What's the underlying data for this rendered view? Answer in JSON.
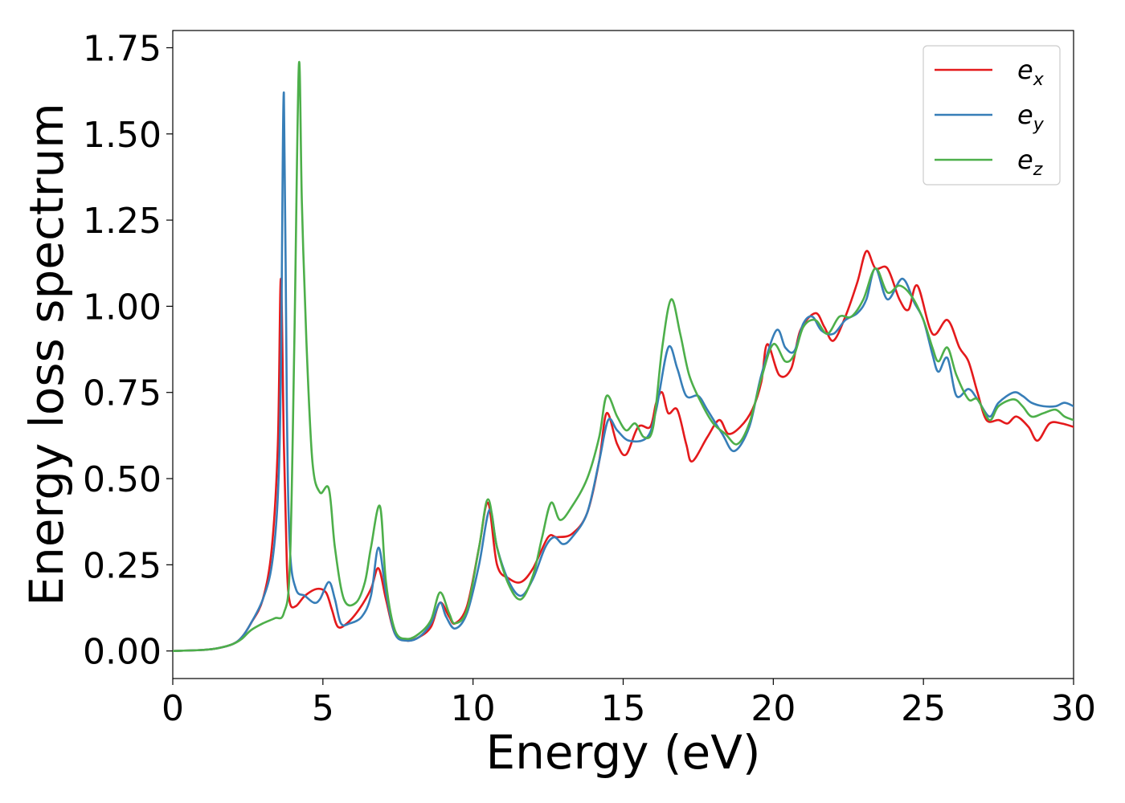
{
  "chart_data": {
    "type": "line",
    "xlabel": "Energy (eV)",
    "ylabel": "Energy loss spectrum",
    "xlim": [
      0,
      30
    ],
    "ylim": [
      -0.08,
      1.8
    ],
    "xticks": [
      0,
      5,
      10,
      15,
      20,
      25,
      30
    ],
    "xtick_labels": [
      "0",
      "5",
      "10",
      "15",
      "20",
      "25",
      "30"
    ],
    "yticks": [
      0,
      0.25,
      0.5,
      0.75,
      1.0,
      1.25,
      1.5,
      1.75
    ],
    "ytick_labels": [
      "0.00",
      "0.25",
      "0.50",
      "0.75",
      "1.00",
      "1.25",
      "1.50",
      "1.75"
    ],
    "grid": false,
    "legend_position": "top-right",
    "series": [
      {
        "name": "e_x",
        "legend_main": "e",
        "legend_sub": "x",
        "color": "#e41a1c",
        "points": [
          [
            0,
            0
          ],
          [
            1,
            0.003
          ],
          [
            1.5,
            0.008
          ],
          [
            2,
            0.02
          ],
          [
            2.3,
            0.04
          ],
          [
            2.6,
            0.08
          ],
          [
            3,
            0.15
          ],
          [
            3.3,
            0.3
          ],
          [
            3.5,
            0.6
          ],
          [
            3.6,
            1.08
          ],
          [
            3.7,
            0.6
          ],
          [
            3.8,
            0.25
          ],
          [
            3.9,
            0.14
          ],
          [
            4.1,
            0.13
          ],
          [
            4.4,
            0.16
          ],
          [
            4.8,
            0.18
          ],
          [
            5.1,
            0.17
          ],
          [
            5.3,
            0.12
          ],
          [
            5.5,
            0.07
          ],
          [
            5.8,
            0.08
          ],
          [
            6.2,
            0.12
          ],
          [
            6.6,
            0.18
          ],
          [
            6.85,
            0.24
          ],
          [
            7.1,
            0.15
          ],
          [
            7.4,
            0.05
          ],
          [
            7.8,
            0.03
          ],
          [
            8.2,
            0.04
          ],
          [
            8.6,
            0.07
          ],
          [
            8.9,
            0.14
          ],
          [
            9.2,
            0.1
          ],
          [
            9.4,
            0.08
          ],
          [
            9.8,
            0.13
          ],
          [
            10.2,
            0.3
          ],
          [
            10.5,
            0.43
          ],
          [
            10.8,
            0.25
          ],
          [
            11.2,
            0.21
          ],
          [
            11.6,
            0.2
          ],
          [
            12,
            0.24
          ],
          [
            12.5,
            0.33
          ],
          [
            12.8,
            0.33
          ],
          [
            13.3,
            0.34
          ],
          [
            13.8,
            0.4
          ],
          [
            14.2,
            0.55
          ],
          [
            14.45,
            0.69
          ],
          [
            14.8,
            0.6
          ],
          [
            15.1,
            0.57
          ],
          [
            15.5,
            0.65
          ],
          [
            15.9,
            0.65
          ],
          [
            16.1,
            0.72
          ],
          [
            16.3,
            0.75
          ],
          [
            16.5,
            0.69
          ],
          [
            16.8,
            0.7
          ],
          [
            17.1,
            0.6
          ],
          [
            17.3,
            0.55
          ],
          [
            17.8,
            0.62
          ],
          [
            18.2,
            0.67
          ],
          [
            18.5,
            0.63
          ],
          [
            18.9,
            0.65
          ],
          [
            19.3,
            0.7
          ],
          [
            19.6,
            0.78
          ],
          [
            19.8,
            0.89
          ],
          [
            20.2,
            0.8
          ],
          [
            20.6,
            0.82
          ],
          [
            20.9,
            0.93
          ],
          [
            21.4,
            0.98
          ],
          [
            21.7,
            0.94
          ],
          [
            22.0,
            0.9
          ],
          [
            22.4,
            0.97
          ],
          [
            22.8,
            1.07
          ],
          [
            23.1,
            1.16
          ],
          [
            23.4,
            1.11
          ],
          [
            23.8,
            1.11
          ],
          [
            24.2,
            1.02
          ],
          [
            24.5,
            0.99
          ],
          [
            24.8,
            1.06
          ],
          [
            25.3,
            0.92
          ],
          [
            25.8,
            0.96
          ],
          [
            26.2,
            0.88
          ],
          [
            26.5,
            0.84
          ],
          [
            26.8,
            0.75
          ],
          [
            27.1,
            0.67
          ],
          [
            27.5,
            0.67
          ],
          [
            27.8,
            0.66
          ],
          [
            28.1,
            0.68
          ],
          [
            28.5,
            0.65
          ],
          [
            28.8,
            0.61
          ],
          [
            29.2,
            0.66
          ],
          [
            29.6,
            0.66
          ],
          [
            30,
            0.65
          ]
        ]
      },
      {
        "name": "e_y",
        "legend_main": "e",
        "legend_sub": "y",
        "color": "#377eb8",
        "points": [
          [
            0,
            0
          ],
          [
            1,
            0.003
          ],
          [
            1.5,
            0.008
          ],
          [
            2,
            0.02
          ],
          [
            2.3,
            0.04
          ],
          [
            2.6,
            0.08
          ],
          [
            3,
            0.15
          ],
          [
            3.3,
            0.25
          ],
          [
            3.5,
            0.45
          ],
          [
            3.6,
            0.8
          ],
          [
            3.7,
            1.62
          ],
          [
            3.8,
            0.7
          ],
          [
            3.9,
            0.3
          ],
          [
            4.1,
            0.18
          ],
          [
            4.4,
            0.16
          ],
          [
            4.7,
            0.14
          ],
          [
            4.9,
            0.15
          ],
          [
            5.2,
            0.2
          ],
          [
            5.4,
            0.15
          ],
          [
            5.6,
            0.08
          ],
          [
            5.9,
            0.08
          ],
          [
            6.3,
            0.1
          ],
          [
            6.6,
            0.16
          ],
          [
            6.85,
            0.3
          ],
          [
            7.1,
            0.17
          ],
          [
            7.4,
            0.05
          ],
          [
            7.8,
            0.03
          ],
          [
            8.2,
            0.04
          ],
          [
            8.6,
            0.08
          ],
          [
            8.9,
            0.14
          ],
          [
            9.1,
            0.1
          ],
          [
            9.4,
            0.065
          ],
          [
            9.8,
            0.11
          ],
          [
            10.2,
            0.25
          ],
          [
            10.55,
            0.41
          ],
          [
            10.8,
            0.3
          ],
          [
            11.2,
            0.2
          ],
          [
            11.6,
            0.16
          ],
          [
            12,
            0.21
          ],
          [
            12.4,
            0.3
          ],
          [
            12.7,
            0.33
          ],
          [
            13,
            0.31
          ],
          [
            13.3,
            0.33
          ],
          [
            13.8,
            0.4
          ],
          [
            14.2,
            0.55
          ],
          [
            14.5,
            0.67
          ],
          [
            14.8,
            0.64
          ],
          [
            15.2,
            0.61
          ],
          [
            15.8,
            0.62
          ],
          [
            16.1,
            0.7
          ],
          [
            16.5,
            0.88
          ],
          [
            16.8,
            0.82
          ],
          [
            17.1,
            0.74
          ],
          [
            17.5,
            0.74
          ],
          [
            17.8,
            0.7
          ],
          [
            18.3,
            0.63
          ],
          [
            18.7,
            0.58
          ],
          [
            19.2,
            0.65
          ],
          [
            19.6,
            0.8
          ],
          [
            20.1,
            0.93
          ],
          [
            20.4,
            0.88
          ],
          [
            20.7,
            0.87
          ],
          [
            21,
            0.95
          ],
          [
            21.3,
            0.97
          ],
          [
            21.6,
            0.93
          ],
          [
            22,
            0.92
          ],
          [
            22.4,
            0.96
          ],
          [
            22.8,
            0.98
          ],
          [
            23.1,
            1.02
          ],
          [
            23.4,
            1.11
          ],
          [
            23.8,
            1.02
          ],
          [
            24.3,
            1.08
          ],
          [
            24.7,
            1.01
          ],
          [
            25,
            0.96
          ],
          [
            25.3,
            0.86
          ],
          [
            25.5,
            0.81
          ],
          [
            25.8,
            0.85
          ],
          [
            26.1,
            0.74
          ],
          [
            26.5,
            0.76
          ],
          [
            26.8,
            0.73
          ],
          [
            27.2,
            0.68
          ],
          [
            27.5,
            0.72
          ],
          [
            28,
            0.75
          ],
          [
            28.3,
            0.74
          ],
          [
            28.6,
            0.72
          ],
          [
            29,
            0.71
          ],
          [
            29.4,
            0.71
          ],
          [
            29.7,
            0.72
          ],
          [
            30,
            0.71
          ]
        ]
      },
      {
        "name": "e_z",
        "legend_main": "e",
        "legend_sub": "z",
        "color": "#4daf4a",
        "points": [
          [
            0,
            0
          ],
          [
            1,
            0.003
          ],
          [
            1.5,
            0.008
          ],
          [
            2,
            0.02
          ],
          [
            2.3,
            0.035
          ],
          [
            2.6,
            0.06
          ],
          [
            3,
            0.08
          ],
          [
            3.4,
            0.095
          ],
          [
            3.7,
            0.11
          ],
          [
            3.9,
            0.25
          ],
          [
            4.05,
            0.9
          ],
          [
            4.2,
            1.7
          ],
          [
            4.3,
            1.3
          ],
          [
            4.45,
            0.9
          ],
          [
            4.65,
            0.55
          ],
          [
            4.9,
            0.46
          ],
          [
            5.2,
            0.47
          ],
          [
            5.4,
            0.3
          ],
          [
            5.7,
            0.15
          ],
          [
            6.1,
            0.14
          ],
          [
            6.4,
            0.2
          ],
          [
            6.6,
            0.3
          ],
          [
            6.9,
            0.42
          ],
          [
            7.1,
            0.2
          ],
          [
            7.4,
            0.06
          ],
          [
            7.8,
            0.035
          ],
          [
            8.2,
            0.05
          ],
          [
            8.6,
            0.09
          ],
          [
            8.9,
            0.17
          ],
          [
            9.2,
            0.11
          ],
          [
            9.4,
            0.08
          ],
          [
            9.8,
            0.12
          ],
          [
            10.2,
            0.3
          ],
          [
            10.5,
            0.44
          ],
          [
            10.8,
            0.3
          ],
          [
            11.2,
            0.19
          ],
          [
            11.6,
            0.15
          ],
          [
            12,
            0.22
          ],
          [
            12.3,
            0.33
          ],
          [
            12.6,
            0.43
          ],
          [
            12.9,
            0.38
          ],
          [
            13.3,
            0.42
          ],
          [
            13.8,
            0.5
          ],
          [
            14.2,
            0.62
          ],
          [
            14.45,
            0.74
          ],
          [
            14.8,
            0.68
          ],
          [
            15.1,
            0.64
          ],
          [
            15.4,
            0.66
          ],
          [
            15.7,
            0.62
          ],
          [
            16,
            0.65
          ],
          [
            16.3,
            0.88
          ],
          [
            16.6,
            1.02
          ],
          [
            16.9,
            0.92
          ],
          [
            17.2,
            0.8
          ],
          [
            17.6,
            0.72
          ],
          [
            18,
            0.66
          ],
          [
            18.4,
            0.63
          ],
          [
            18.8,
            0.6
          ],
          [
            19.2,
            0.66
          ],
          [
            19.6,
            0.79
          ],
          [
            20,
            0.89
          ],
          [
            20.4,
            0.84
          ],
          [
            20.7,
            0.86
          ],
          [
            21,
            0.94
          ],
          [
            21.4,
            0.96
          ],
          [
            21.8,
            0.92
          ],
          [
            22.2,
            0.97
          ],
          [
            22.6,
            0.97
          ],
          [
            23,
            1.02
          ],
          [
            23.4,
            1.11
          ],
          [
            23.8,
            1.04
          ],
          [
            24.2,
            1.06
          ],
          [
            24.6,
            1.03
          ],
          [
            25,
            0.96
          ],
          [
            25.3,
            0.88
          ],
          [
            25.5,
            0.84
          ],
          [
            25.8,
            0.88
          ],
          [
            26.1,
            0.8
          ],
          [
            26.5,
            0.73
          ],
          [
            26.8,
            0.73
          ],
          [
            27.2,
            0.67
          ],
          [
            27.5,
            0.71
          ],
          [
            28,
            0.73
          ],
          [
            28.3,
            0.71
          ],
          [
            28.6,
            0.68
          ],
          [
            29,
            0.69
          ],
          [
            29.4,
            0.7
          ],
          [
            29.7,
            0.68
          ],
          [
            30,
            0.67
          ]
        ]
      }
    ]
  }
}
